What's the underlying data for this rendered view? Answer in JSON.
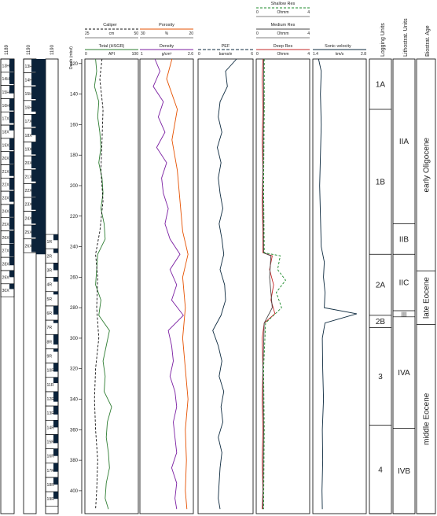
{
  "cores": {
    "holeA": {
      "header": "1189",
      "labels": [
        "13H",
        "14H",
        "15H",
        "16H",
        "17X",
        "18X",
        "19X",
        "20X",
        "21X",
        "22X",
        "23X",
        "24X",
        "25X",
        "26X",
        "27X",
        "28X",
        "29X",
        "30X"
      ],
      "recovery": [
        0.95,
        0.9,
        0.6,
        0.9,
        0.85,
        0.4,
        0.9,
        0.95,
        0.85,
        0.9,
        0.8,
        0.95,
        0.9,
        0.95,
        0.95,
        0.6,
        0.5,
        0.4
      ]
    },
    "holeB": {
      "header": "1190",
      "labels": [
        "13H",
        "14H",
        "15H",
        "16H",
        "17X",
        "18X",
        "19X",
        "20X",
        "21X",
        "22X",
        "23X",
        "24X",
        "25X",
        "26X"
      ],
      "recovery": [
        0.95,
        0.9,
        0.9,
        0.8,
        0.9,
        0.5,
        0.9,
        0.9,
        0.85,
        0.95,
        0.9,
        0.9,
        0.9,
        0.95
      ]
    },
    "holeC": {
      "header": "1190",
      "bar_depth": [
        117,
        245
      ],
      "labels": [
        "1R",
        "2R",
        "3R",
        "4R",
        "5R",
        "6R",
        "7R",
        "8R",
        "9R",
        "10R",
        "11R",
        "12R",
        "13R",
        "14R",
        "15R",
        "16R",
        "17R",
        "18R",
        "19R"
      ],
      "recovery": [
        0.4,
        0.3,
        0.5,
        0.3,
        0.2,
        0.6,
        0.2,
        0.7,
        0.2,
        0.6,
        0.4,
        0.7,
        0.6,
        0.5,
        0.6,
        0.5,
        0.6,
        0.5,
        0.5
      ]
    },
    "depth_header": "Depth (mbsf)"
  },
  "depth_ticks": [
    120,
    140,
    160,
    180,
    200,
    220,
    240,
    260,
    280,
    300,
    320,
    340,
    360,
    380,
    400
  ],
  "tracks": {
    "gr": {
      "top_title": "Caliper",
      "top_min": "25",
      "top_unit": "cm",
      "top_max": "50",
      "title": "Total (HSGR)",
      "min": "0",
      "unit": "API",
      "max": "100"
    },
    "density": {
      "top_title": "Porosity",
      "top_min": "30",
      "top_unit": "%",
      "top_max": "20",
      "title": "Density",
      "min": "1",
      "unit": "g/cm³",
      "max": "2.6"
    },
    "pef": {
      "title": "PEF",
      "min": "0",
      "unit": "barns/e",
      "max": "6"
    },
    "res": {
      "shallow_title": "Shallow Res",
      "shallow_min": "0",
      "shallow_unit": "Ohmm",
      "shallow_max": "4",
      "medium_title": "Medium Res",
      "medium_min": "0",
      "medium_unit": "Ohmm",
      "medium_max": "4",
      "title": "Deep Res",
      "min": "0",
      "unit": "Ohmm",
      "max": "4"
    },
    "sonic": {
      "title": "Sonic velocity",
      "min": "1.4",
      "unit": "km/s",
      "max": "2.8"
    }
  },
  "units": {
    "logging_header": "Logging Units",
    "lith_header": "Lithostrat. Units",
    "bio_header": "Biostrat. Age",
    "logging": [
      {
        "label": "1A",
        "from": 117,
        "to": 150
      },
      {
        "label": "1B",
        "from": 150,
        "to": 245
      },
      {
        "label": "2A",
        "from": 245,
        "to": 285
      },
      {
        "label": "2B",
        "from": 285,
        "to": 293
      },
      {
        "label": "3",
        "from": 293,
        "to": 357
      },
      {
        "label": "4",
        "from": 357,
        "to": 415
      }
    ],
    "lith": [
      {
        "label": "IIA",
        "from": 117,
        "to": 225
      },
      {
        "label": "IIB",
        "from": 225,
        "to": 245
      },
      {
        "label": "IIC",
        "from": 245,
        "to": 282
      },
      {
        "label": "III",
        "from": 282,
        "to": 286
      },
      {
        "label": "IVA",
        "from": 286,
        "to": 359
      },
      {
        "label": "IVB",
        "from": 359,
        "to": 415
      }
    ],
    "bio": [
      {
        "label": "early Oligocene",
        "from": 117,
        "to": 256
      },
      {
        "label": "late Eocene",
        "from": 256,
        "to": 291
      },
      {
        "label": "middle Eocene",
        "from": 291,
        "to": 415
      }
    ]
  },
  "chart_data": {
    "type": "line",
    "y_axis": {
      "label": "Depth (mbsf)",
      "range": [
        117,
        415
      ],
      "inverted": true
    },
    "series": [
      {
        "name": "Total (HSGR)",
        "track": "gr",
        "color": "#2e7d32",
        "range": [
          0,
          100
        ],
        "depth": [
          117,
          125,
          135,
          145,
          155,
          165,
          175,
          185,
          195,
          205,
          215,
          225,
          235,
          245,
          255,
          265,
          275,
          285,
          295,
          305,
          315,
          325,
          335,
          345,
          355,
          365,
          375,
          385,
          395,
          405,
          412
        ],
        "values": [
          20,
          22,
          18,
          26,
          24,
          28,
          30,
          26,
          32,
          34,
          30,
          36,
          38,
          24,
          22,
          20,
          30,
          26,
          46,
          40,
          34,
          38,
          36,
          50,
          42,
          40,
          44,
          46,
          40,
          38,
          44
        ]
      },
      {
        "name": "Caliper",
        "track": "gr",
        "color": "#111111",
        "range": [
          25,
          50
        ],
        "depth": [
          117,
          130,
          150,
          170,
          190,
          210,
          230,
          245,
          260,
          280,
          300,
          320,
          340,
          360,
          380,
          400,
          412
        ],
        "values": [
          33,
          32,
          33.5,
          33,
          32.5,
          33.5,
          32,
          30,
          31,
          30.5,
          31.5,
          30,
          29.5,
          30,
          31,
          30.5,
          30
        ]
      },
      {
        "name": "Density",
        "track": "density",
        "color": "#7b1fa2",
        "range": [
          1,
          2.6
        ],
        "depth": [
          117,
          125,
          135,
          145,
          155,
          165,
          175,
          185,
          195,
          205,
          215,
          225,
          235,
          245,
          255,
          265,
          275,
          285,
          295,
          305,
          315,
          325,
          335,
          345,
          355,
          365,
          375,
          385,
          395,
          405,
          412
        ],
        "values": [
          1.45,
          1.6,
          1.4,
          1.7,
          1.55,
          1.75,
          1.5,
          1.8,
          1.65,
          1.7,
          1.85,
          1.75,
          1.9,
          2.2,
          1.9,
          2.1,
          1.95,
          2.3,
          1.85,
          1.95,
          2.0,
          1.9,
          2.05,
          2.1,
          2.0,
          2.05,
          2.1,
          1.95,
          2.1,
          2.05,
          2.1
        ]
      },
      {
        "name": "Porosity",
        "track": "density",
        "color": "#e65100",
        "range": [
          30,
          20
        ],
        "depth": [
          117,
          130,
          150,
          170,
          190,
          210,
          230,
          245,
          260,
          280,
          300,
          320,
          340,
          360,
          380,
          400,
          412
        ],
        "values": [
          24,
          25,
          23,
          24,
          23,
          22.5,
          22,
          21,
          22,
          21.5,
          22,
          21.5,
          21,
          21.5,
          21.3,
          21.5,
          21.2
        ]
      },
      {
        "name": "PEF",
        "track": "pef",
        "color": "#0d2a3f",
        "range": [
          0,
          6
        ],
        "depth": [
          117,
          125,
          135,
          145,
          155,
          165,
          175,
          185,
          195,
          205,
          215,
          225,
          235,
          245,
          255,
          265,
          275,
          285,
          295,
          305,
          315,
          325,
          335,
          345,
          355,
          365,
          375,
          385,
          395,
          405,
          412
        ],
        "values": [
          4.2,
          3.0,
          3.2,
          2.4,
          2.2,
          2.6,
          2.1,
          2.5,
          2.2,
          2.4,
          2.7,
          2.3,
          2.6,
          2.8,
          2.4,
          2.9,
          3.0,
          2.5,
          1.6,
          2.2,
          2.6,
          2.3,
          2.8,
          2.5,
          2.7,
          2.2,
          2.6,
          2.4,
          2.3,
          2.2,
          2.4
        ]
      },
      {
        "name": "Deep Res",
        "track": "res",
        "color": "#c62828",
        "range": [
          0,
          4
        ],
        "depth": [
          117,
          130,
          150,
          170,
          190,
          210,
          230,
          244,
          246,
          255,
          265,
          275,
          284,
          290,
          300,
          320,
          340,
          360,
          380,
          400,
          412
        ],
        "values": [
          0.5,
          0.45,
          0.5,
          0.45,
          0.5,
          0.45,
          0.5,
          0.5,
          1.2,
          1.0,
          1.3,
          1.1,
          1.4,
          0.6,
          0.45,
          0.5,
          0.45,
          0.5,
          0.45,
          0.5,
          0.45
        ]
      },
      {
        "name": "Medium Res",
        "track": "res",
        "color": "#444444",
        "range": [
          0,
          4
        ],
        "depth": [
          117,
          150,
          200,
          244,
          246,
          260,
          280,
          290,
          320,
          360,
          412
        ],
        "values": [
          0.55,
          0.55,
          0.5,
          0.55,
          1.1,
          1.0,
          1.2,
          0.6,
          0.5,
          0.55,
          0.5
        ]
      },
      {
        "name": "Shallow Res",
        "track": "res",
        "color": "#1b8a2a",
        "range": [
          0,
          4
        ],
        "depth": [
          117,
          150,
          200,
          244,
          246,
          255,
          262,
          270,
          280,
          290,
          320,
          360,
          412
        ],
        "values": [
          0.6,
          0.6,
          0.55,
          0.6,
          1.8,
          1.6,
          2.2,
          1.5,
          1.9,
          0.7,
          0.55,
          0.6,
          0.55
        ]
      },
      {
        "name": "Sonic velocity",
        "track": "sonic",
        "color": "#0d2a3f",
        "range": [
          1.4,
          2.8
        ],
        "depth": [
          117,
          125,
          140,
          160,
          180,
          200,
          220,
          240,
          250,
          260,
          270,
          280,
          284,
          290,
          300,
          320,
          340,
          360,
          380,
          400,
          412
        ],
        "values": [
          1.55,
          1.62,
          1.6,
          1.62,
          1.6,
          1.58,
          1.6,
          1.62,
          1.7,
          1.68,
          1.72,
          1.7,
          2.55,
          1.72,
          1.65,
          1.66,
          1.68,
          1.65,
          1.66,
          1.64,
          1.65
        ]
      }
    ]
  }
}
